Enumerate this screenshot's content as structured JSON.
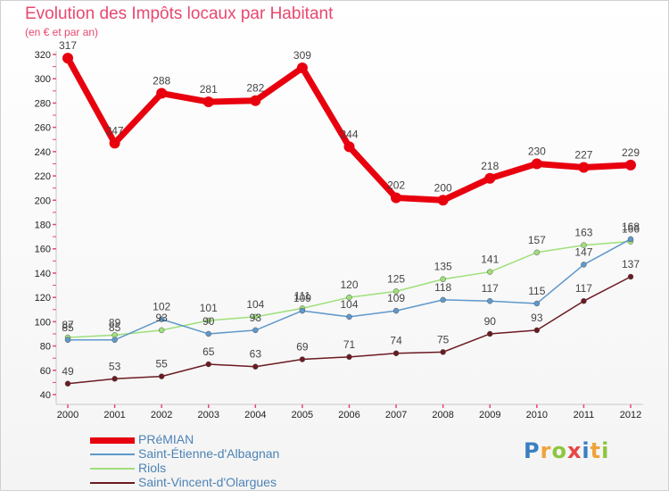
{
  "header": {
    "title": "Evolution des Impôts locaux par Habitant",
    "subtitle": "(en € et par an)"
  },
  "logo": {
    "text": "Proxiti",
    "colors": [
      "#3a7fc1",
      "#f0a23a",
      "#8cc63f",
      "#e84545",
      "#3a7fc1",
      "#f0a23a",
      "#8cc63f"
    ]
  },
  "chart_data": {
    "type": "line",
    "title": "Evolution des Impôts locaux par Habitant",
    "subtitle": "(en € et par an)",
    "x": [
      "2000",
      "2001",
      "2002",
      "2003",
      "2004",
      "2005",
      "2006",
      "2007",
      "2008",
      "2009",
      "2010",
      "2011",
      "2012"
    ],
    "ylim": [
      40,
      320
    ],
    "yticks": [
      40,
      60,
      80,
      100,
      120,
      140,
      160,
      180,
      200,
      220,
      240,
      260,
      280,
      300,
      320
    ],
    "grid": false,
    "legend_position": "bottom-left",
    "series": [
      {
        "name": "PRéMIAN",
        "color": "#e8000e",
        "values": [
          317,
          247,
          288,
          281,
          282,
          309,
          244,
          202,
          200,
          218,
          230,
          227,
          229
        ]
      },
      {
        "name": "Saint-Étienne-d'Albagnan",
        "color": "#5f98cb",
        "values": [
          85,
          85,
          102,
          90,
          93,
          109,
          104,
          109,
          118,
          117,
          115,
          147,
          168
        ]
      },
      {
        "name": "Riols",
        "color": "#9ee07a",
        "values": [
          87,
          89,
          93,
          101,
          104,
          111,
          120,
          125,
          135,
          141,
          157,
          163,
          166
        ]
      },
      {
        "name": "Saint-Vincent-d'Olargues",
        "color": "#6b1a22",
        "values": [
          49,
          53,
          55,
          65,
          63,
          69,
          71,
          74,
          75,
          90,
          93,
          117,
          137
        ]
      }
    ]
  }
}
